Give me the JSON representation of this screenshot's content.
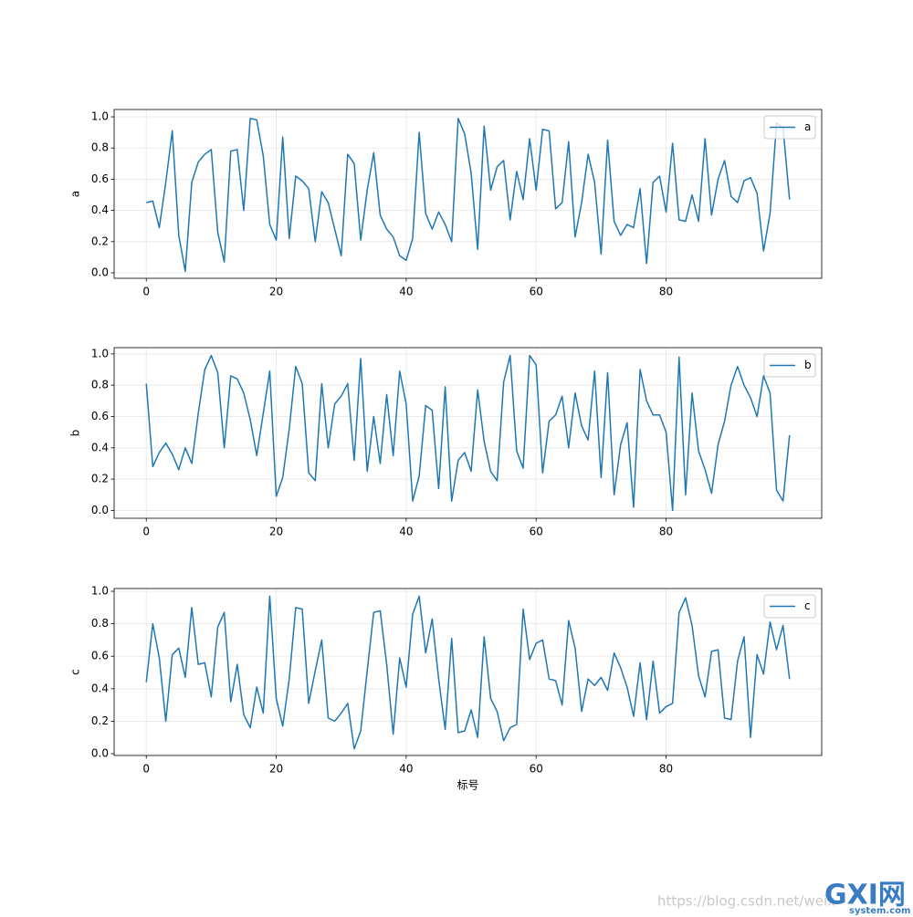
{
  "chart_data": [
    {
      "type": "line",
      "ylabel": "a",
      "x": [
        0,
        1,
        2,
        3,
        4,
        5,
        6,
        7,
        8,
        9,
        10,
        11,
        12,
        13,
        14,
        15,
        16,
        17,
        18,
        19,
        20,
        21,
        22,
        23,
        24,
        25,
        26,
        27,
        28,
        29,
        30,
        31,
        32,
        33,
        34,
        35,
        36,
        37,
        38,
        39,
        40,
        41,
        42,
        43,
        44,
        45,
        46,
        47,
        48,
        49,
        50,
        51,
        52,
        53,
        54,
        55,
        56,
        57,
        58,
        59,
        60,
        61,
        62,
        63,
        64,
        65,
        66,
        67,
        68,
        69,
        70,
        71,
        72,
        73,
        74,
        75,
        76,
        77,
        78,
        79,
        80,
        81,
        82,
        83,
        84,
        85,
        86,
        87,
        88,
        89,
        90,
        91,
        92,
        93,
        94,
        95,
        96,
        97,
        98,
        99
      ],
      "series": [
        {
          "name": "a",
          "color": "#1f77b4",
          "values": [
            0.45,
            0.46,
            0.29,
            0.58,
            0.91,
            0.24,
            0.01,
            0.58,
            0.71,
            0.76,
            0.79,
            0.26,
            0.07,
            0.78,
            0.79,
            0.4,
            0.99,
            0.98,
            0.75,
            0.31,
            0.21,
            0.87,
            0.22,
            0.62,
            0.59,
            0.54,
            0.2,
            0.52,
            0.45,
            0.28,
            0.11,
            0.76,
            0.7,
            0.21,
            0.53,
            0.77,
            0.37,
            0.28,
            0.23,
            0.11,
            0.08,
            0.22,
            0.9,
            0.38,
            0.28,
            0.39,
            0.31,
            0.2,
            0.99,
            0.89,
            0.64,
            0.15,
            0.94,
            0.53,
            0.68,
            0.72,
            0.34,
            0.65,
            0.47,
            0.86,
            0.53,
            0.92,
            0.91,
            0.41,
            0.45,
            0.84,
            0.23,
            0.45,
            0.76,
            0.58,
            0.12,
            0.85,
            0.33,
            0.24,
            0.31,
            0.29,
            0.54,
            0.06,
            0.58,
            0.62,
            0.39,
            0.83,
            0.34,
            0.33,
            0.5,
            0.33,
            0.86,
            0.37,
            0.6,
            0.72,
            0.49,
            0.45,
            0.59,
            0.61,
            0.51,
            0.14,
            0.38,
            0.96,
            0.93,
            0.47
          ]
        }
      ],
      "xlim": [
        -4.95,
        103.95
      ],
      "ylim": [
        -0.035,
        1.047
      ],
      "xticks": [
        0,
        20,
        40,
        60,
        80
      ],
      "yticks": [
        {
          "value": 0,
          "label": "0.0"
        },
        0.2,
        0.4,
        0.6,
        0.8,
        {
          "value": 1,
          "label": "1.0"
        }
      ],
      "grid": true,
      "legend": "upper right"
    },
    {
      "type": "line",
      "ylabel": "b",
      "x": [
        0,
        1,
        2,
        3,
        4,
        5,
        6,
        7,
        8,
        9,
        10,
        11,
        12,
        13,
        14,
        15,
        16,
        17,
        18,
        19,
        20,
        21,
        22,
        23,
        24,
        25,
        26,
        27,
        28,
        29,
        30,
        31,
        32,
        33,
        34,
        35,
        36,
        37,
        38,
        39,
        40,
        41,
        42,
        43,
        44,
        45,
        46,
        47,
        48,
        49,
        50,
        51,
        52,
        53,
        54,
        55,
        56,
        57,
        58,
        59,
        60,
        61,
        62,
        63,
        64,
        65,
        66,
        67,
        68,
        69,
        70,
        71,
        72,
        73,
        74,
        75,
        76,
        77,
        78,
        79,
        80,
        81,
        82,
        83,
        84,
        85,
        86,
        87,
        88,
        89,
        90,
        91,
        92,
        93,
        94,
        95,
        96,
        97,
        98,
        99
      ],
      "series": [
        {
          "name": "b",
          "color": "#1f77b4",
          "values": [
            0.81,
            0.28,
            0.37,
            0.43,
            0.36,
            0.26,
            0.4,
            0.3,
            0.62,
            0.9,
            0.99,
            0.88,
            0.4,
            0.86,
            0.84,
            0.75,
            0.58,
            0.35,
            0.62,
            0.89,
            0.09,
            0.21,
            0.52,
            0.92,
            0.81,
            0.24,
            0.19,
            0.81,
            0.4,
            0.68,
            0.73,
            0.81,
            0.32,
            0.97,
            0.25,
            0.6,
            0.3,
            0.74,
            0.35,
            0.89,
            0.68,
            0.06,
            0.22,
            0.67,
            0.64,
            0.14,
            0.79,
            0.06,
            0.32,
            0.37,
            0.25,
            0.77,
            0.44,
            0.25,
            0.19,
            0.82,
            0.99,
            0.38,
            0.27,
            0.99,
            0.93,
            0.24,
            0.57,
            0.61,
            0.73,
            0.4,
            0.75,
            0.54,
            0.45,
            0.89,
            0.21,
            0.88,
            0.1,
            0.42,
            0.56,
            0.02,
            0.9,
            0.7,
            0.61,
            0.61,
            0.5,
            0.0,
            0.98,
            0.1,
            0.75,
            0.38,
            0.26,
            0.11,
            0.42,
            0.57,
            0.8,
            0.92,
            0.8,
            0.72,
            0.6,
            0.86,
            0.75,
            0.13,
            0.06,
            0.48
          ]
        }
      ],
      "xlim": [
        -4.95,
        103.95
      ],
      "ylim": [
        -0.05,
        1.04
      ],
      "xticks": [
        0,
        20,
        40,
        60,
        80
      ],
      "yticks": [
        {
          "value": 0,
          "label": "0.0"
        },
        0.2,
        0.4,
        0.6,
        0.8,
        {
          "value": 1,
          "label": "1.0"
        }
      ],
      "grid": true,
      "legend": "upper right"
    },
    {
      "type": "line",
      "ylabel": "c",
      "xlabel": "标号",
      "x": [
        0,
        1,
        2,
        3,
        4,
        5,
        6,
        7,
        8,
        9,
        10,
        11,
        12,
        13,
        14,
        15,
        16,
        17,
        18,
        19,
        20,
        21,
        22,
        23,
        24,
        25,
        26,
        27,
        28,
        29,
        30,
        31,
        32,
        33,
        34,
        35,
        36,
        37,
        38,
        39,
        40,
        41,
        42,
        43,
        44,
        45,
        46,
        47,
        48,
        49,
        50,
        51,
        52,
        53,
        54,
        55,
        56,
        57,
        58,
        59,
        60,
        61,
        62,
        63,
        64,
        65,
        66,
        67,
        68,
        69,
        70,
        71,
        72,
        73,
        74,
        75,
        76,
        77,
        78,
        79,
        80,
        81,
        82,
        83,
        84,
        85,
        86,
        87,
        88,
        89,
        90,
        91,
        92,
        93,
        94,
        95,
        96,
        97,
        98,
        99
      ],
      "series": [
        {
          "name": "c",
          "color": "#1f77b4",
          "values": [
            0.44,
            0.8,
            0.59,
            0.2,
            0.61,
            0.65,
            0.47,
            0.9,
            0.55,
            0.56,
            0.35,
            0.78,
            0.87,
            0.32,
            0.55,
            0.24,
            0.16,
            0.41,
            0.25,
            0.97,
            0.34,
            0.17,
            0.46,
            0.9,
            0.89,
            0.31,
            0.51,
            0.7,
            0.22,
            0.2,
            0.25,
            0.31,
            0.03,
            0.14,
            0.51,
            0.87,
            0.88,
            0.55,
            0.12,
            0.59,
            0.41,
            0.86,
            0.97,
            0.62,
            0.83,
            0.46,
            0.15,
            0.71,
            0.13,
            0.14,
            0.27,
            0.1,
            0.72,
            0.34,
            0.26,
            0.08,
            0.16,
            0.18,
            0.89,
            0.58,
            0.68,
            0.7,
            0.46,
            0.45,
            0.3,
            0.82,
            0.65,
            0.26,
            0.46,
            0.42,
            0.47,
            0.39,
            0.62,
            0.53,
            0.41,
            0.23,
            0.56,
            0.21,
            0.57,
            0.25,
            0.29,
            0.31,
            0.87,
            0.96,
            0.79,
            0.48,
            0.35,
            0.63,
            0.64,
            0.22,
            0.21,
            0.57,
            0.72,
            0.1,
            0.61,
            0.49,
            0.81,
            0.64,
            0.79,
            0.46
          ]
        }
      ],
      "xlim": [
        -4.95,
        103.95
      ],
      "ylim": [
        -0.011,
        1.017
      ],
      "xticks": [
        0,
        20,
        40,
        60,
        80
      ],
      "yticks": [
        {
          "value": 0,
          "label": "0.0"
        },
        0.2,
        0.4,
        0.6,
        0.8,
        {
          "value": 1,
          "label": "1.0"
        }
      ],
      "grid": true,
      "legend": "upper right"
    }
  ],
  "watermark": {
    "url": "https://blog.csdn.net/weix",
    "logo": "GXI网",
    "logo_sub": "system.com"
  }
}
